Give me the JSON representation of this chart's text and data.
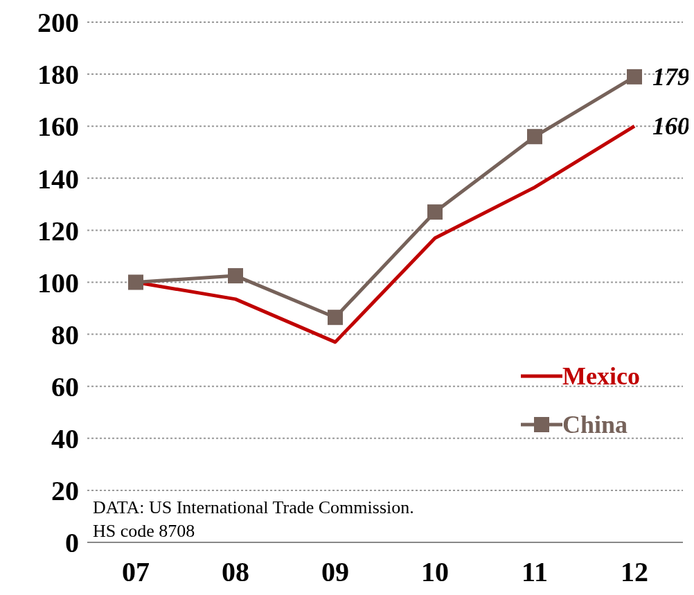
{
  "chart_data": {
    "type": "line",
    "categories": [
      "07",
      "08",
      "09",
      "10",
      "11",
      "12"
    ],
    "series": [
      {
        "name": "Mexico",
        "color": "#c00000",
        "marker": "none",
        "values": [
          100,
          93.5,
          77,
          117,
          136.5,
          160
        ],
        "value_labels": [
          null,
          null,
          null,
          null,
          null,
          "160"
        ]
      },
      {
        "name": "China",
        "color": "#76625a",
        "marker": "square",
        "values": [
          100,
          102.5,
          86.5,
          127,
          156,
          179
        ],
        "value_labels": [
          null,
          null,
          null,
          null,
          null,
          "179"
        ]
      }
    ],
    "ylim": [
      0,
      200
    ],
    "yticks": [
      0,
      20,
      40,
      60,
      80,
      100,
      120,
      140,
      160,
      180,
      200
    ],
    "grid": "y",
    "legend": "bottom right",
    "annotations": [
      "DATA: US International Trade Commission.",
      "HS code 8708"
    ]
  }
}
